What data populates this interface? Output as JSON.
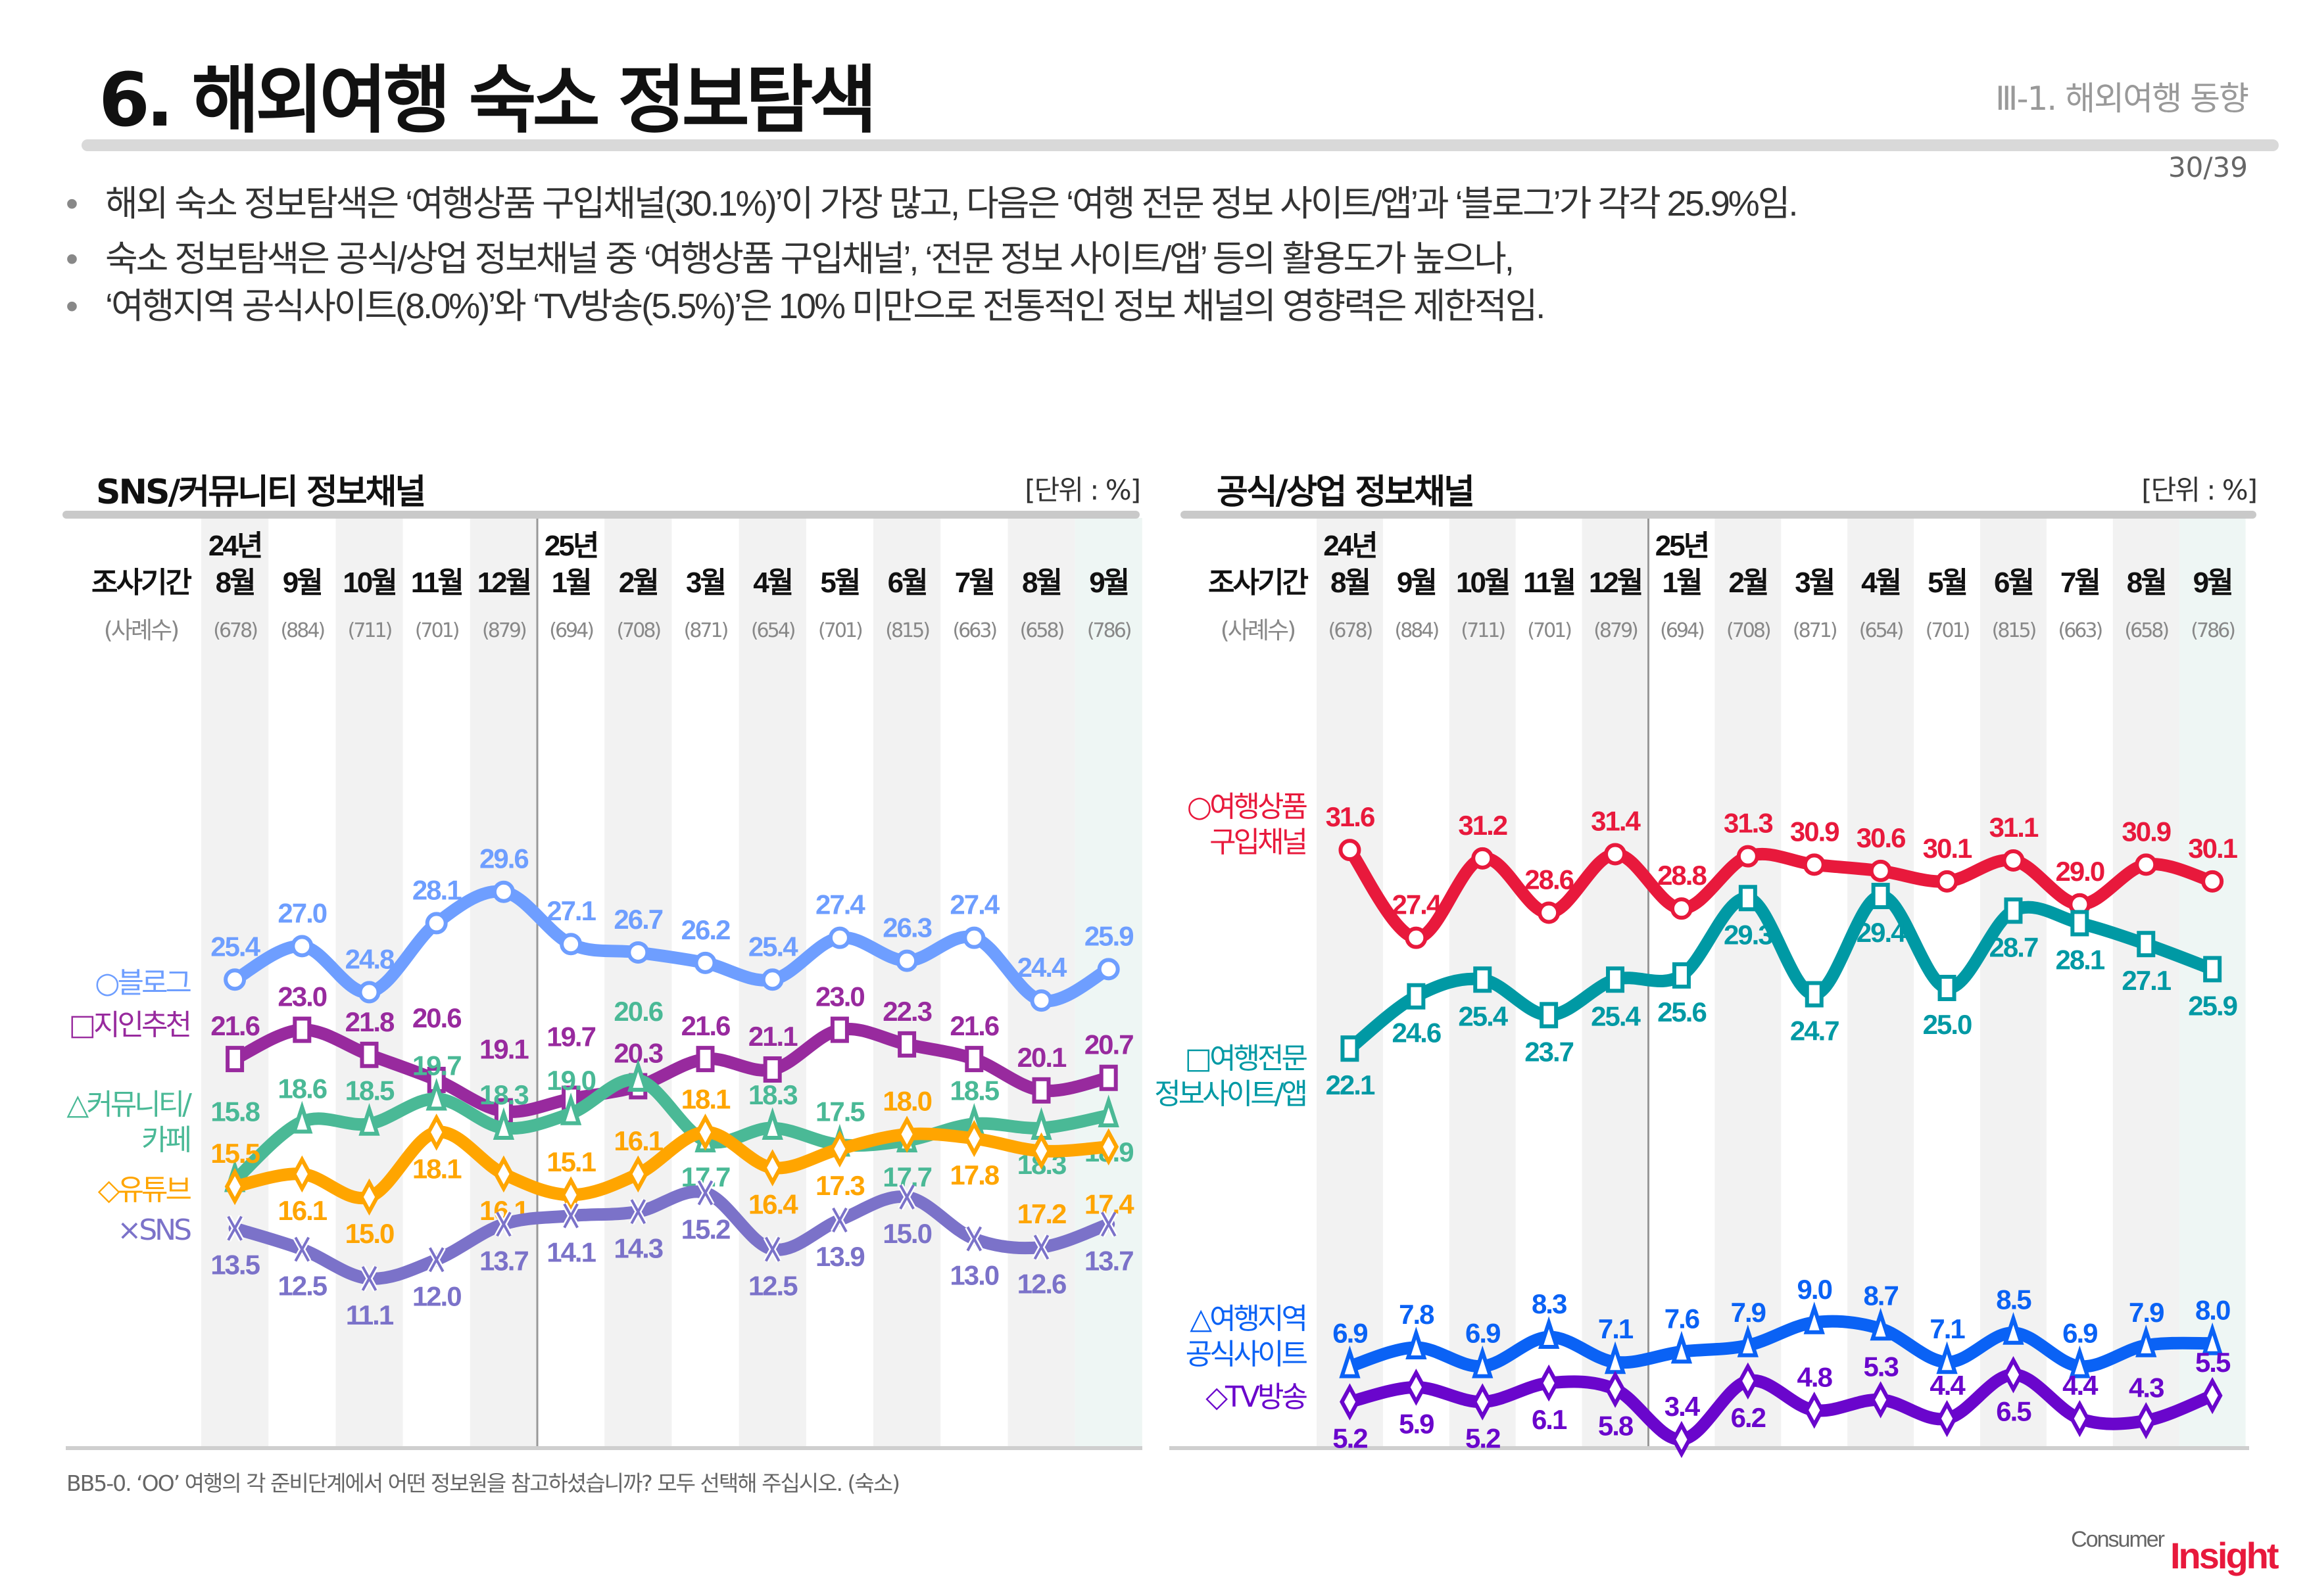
{
  "header": {
    "title": "6. 해외여행 숙소 정보탐색",
    "section": "Ⅲ-1. 해외여행 동향",
    "page": "30/39"
  },
  "bullets": [
    "해외 숙소 정보탐색은 ‘여행상품 구입채널(30.1%)’이 가장 많고, 다음은 ‘여행 전문 정보 사이트/앱’과 ‘블로그’가 각각 25.9%임.",
    "숙소 정보탐색은 공식/상업 정보채널 중 ‘여행상품 구입채널’, ‘전문 정보 사이트/앱’ 등의 활용도가 높으나,",
    "‘여행지역 공식사이트(8.0%)’와 ‘TV방송(5.5%)’은 10% 미만으로 전통적인 정보 채널의 영향력은 제한적임."
  ],
  "footnote": "BB5-0. ‘OO’ 여행의 각 준비단계에서 어떤 정보원을 참고하셨습니까? 모두 선택해 주십시오. (숙소)",
  "logo": {
    "part1": "Consumer",
    "part2": "Insight"
  },
  "chart_data": [
    {
      "type": "line",
      "title": "SNS/커뮤니티 정보채널",
      "unit": "[단위 : %]",
      "period_label": "조사기간",
      "sample_label": "(사례수)",
      "year_labels": {
        "0": "24년",
        "5": "25년"
      },
      "categories": [
        "8월",
        "9월",
        "10월",
        "11월",
        "12월",
        "1월",
        "2월",
        "3월",
        "4월",
        "5월",
        "6월",
        "7월",
        "8월",
        "9월"
      ],
      "samples": [
        "(678)",
        "(884)",
        "(711)",
        "(701)",
        "(879)",
        "(694)",
        "(708)",
        "(871)",
        "(654)",
        "(701)",
        "(815)",
        "(663)",
        "(658)",
        "(786)"
      ],
      "series": [
        {
          "name": "○블로그",
          "marker": "circle",
          "color": "#6E9EFF",
          "values": [
            25.4,
            27.0,
            24.8,
            28.1,
            29.6,
            27.1,
            26.7,
            26.2,
            25.4,
            27.4,
            26.3,
            27.4,
            24.4,
            25.9
          ]
        },
        {
          "name": "□지인추천",
          "marker": "square",
          "color": "#982A9E",
          "values": [
            21.6,
            23.0,
            21.8,
            20.6,
            19.1,
            19.7,
            20.3,
            21.6,
            21.1,
            23.0,
            22.3,
            21.6,
            20.1,
            20.7
          ]
        },
        {
          "name": "△커뮤니티/\n카페",
          "marker": "triangle",
          "color": "#4AB996",
          "values": [
            15.8,
            18.6,
            18.5,
            19.7,
            18.3,
            19.0,
            20.6,
            17.7,
            18.3,
            17.5,
            17.7,
            18.5,
            18.3,
            18.9
          ]
        },
        {
          "name": "◇유튜브",
          "marker": "diamond",
          "color": "#FFA500",
          "values": [
            15.5,
            16.1,
            15.0,
            18.1,
            16.1,
            15.1,
            16.1,
            18.1,
            16.4,
            17.3,
            18.0,
            17.8,
            17.2,
            17.4
          ]
        },
        {
          "name": "×SNS",
          "marker": "x",
          "color": "#7B72C9",
          "values": [
            13.5,
            12.5,
            11.1,
            12.0,
            13.7,
            14.1,
            14.3,
            15.2,
            12.5,
            13.9,
            15.0,
            13.0,
            12.6,
            13.7
          ]
        }
      ]
    },
    {
      "type": "line",
      "title": "공식/상업 정보채널",
      "unit": "[단위 : %]",
      "period_label": "조사기간",
      "sample_label": "(사례수)",
      "year_labels": {
        "0": "24년",
        "5": "25년"
      },
      "categories": [
        "8월",
        "9월",
        "10월",
        "11월",
        "12월",
        "1월",
        "2월",
        "3월",
        "4월",
        "5월",
        "6월",
        "7월",
        "8월",
        "9월"
      ],
      "samples": [
        "(678)",
        "(884)",
        "(711)",
        "(701)",
        "(879)",
        "(694)",
        "(708)",
        "(871)",
        "(654)",
        "(701)",
        "(815)",
        "(663)",
        "(658)",
        "(786)"
      ],
      "series": [
        {
          "name": "○여행상품\n구입채널",
          "marker": "circle",
          "color": "#E8193C",
          "values": [
            31.6,
            27.4,
            31.2,
            28.6,
            31.4,
            28.8,
            31.3,
            30.9,
            30.6,
            30.1,
            31.1,
            29.0,
            30.9,
            30.1
          ]
        },
        {
          "name": "□여행전문\n정보사이트/앱",
          "marker": "square",
          "color": "#0099A4",
          "values": [
            22.1,
            24.6,
            25.4,
            23.7,
            25.4,
            25.6,
            29.3,
            24.7,
            29.4,
            25.0,
            28.7,
            28.1,
            27.1,
            25.9
          ]
        },
        {
          "name": "△여행지역\n공식사이트",
          "marker": "triangle",
          "color": "#0A62F5",
          "values": [
            6.9,
            7.8,
            6.9,
            8.3,
            7.1,
            7.6,
            7.9,
            9.0,
            8.7,
            7.1,
            8.5,
            6.9,
            7.9,
            8.0
          ]
        },
        {
          "name": "◇TV방송",
          "marker": "diamond",
          "color": "#6A06CC",
          "values": [
            5.2,
            5.9,
            5.2,
            6.1,
            5.8,
            3.4,
            6.2,
            4.8,
            5.3,
            4.4,
            6.5,
            4.4,
            4.3,
            5.5
          ]
        }
      ]
    }
  ]
}
